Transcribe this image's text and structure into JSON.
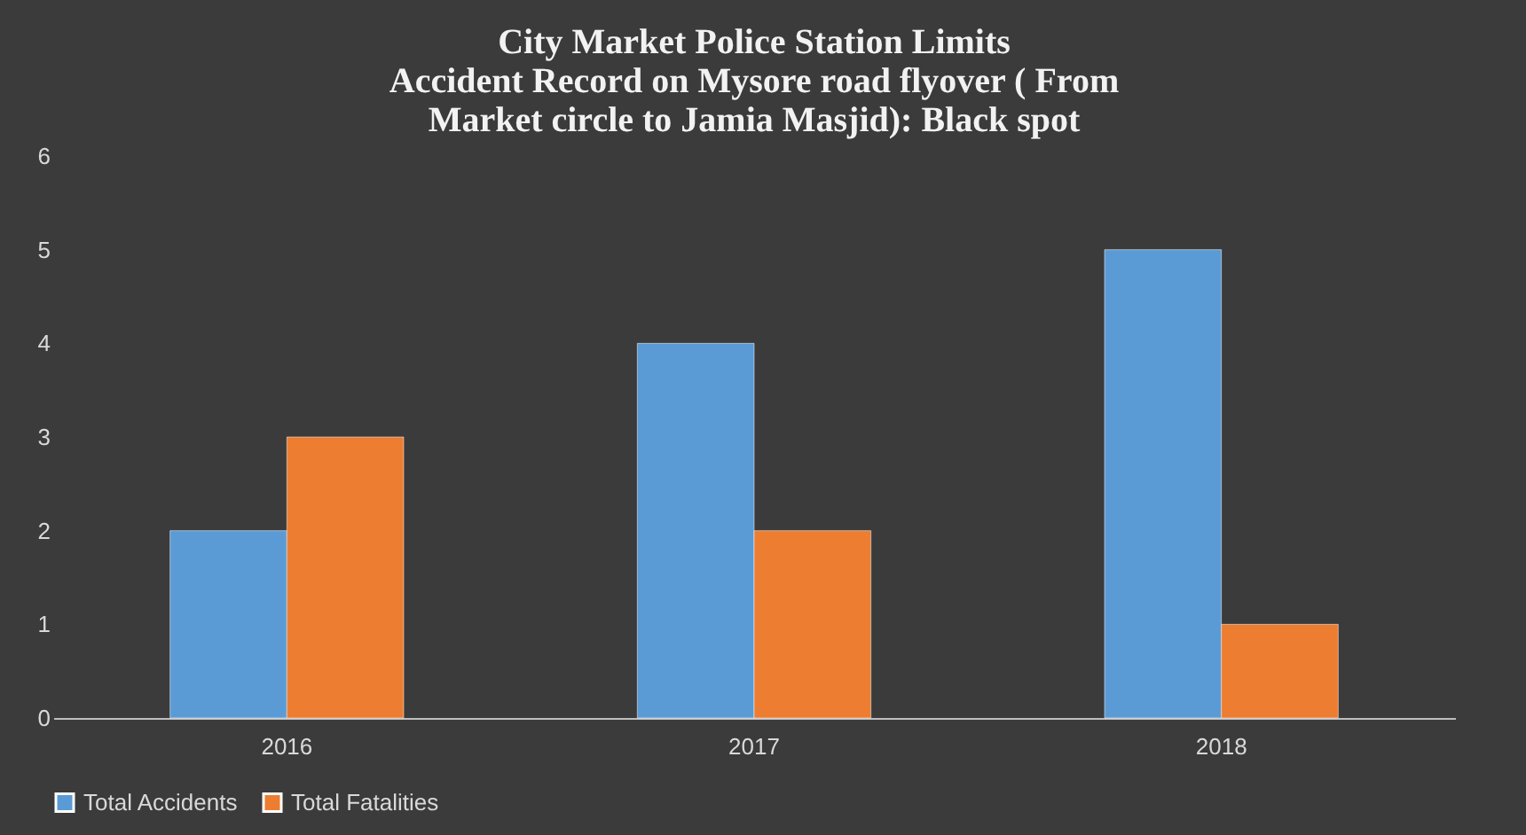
{
  "chart_data": {
    "type": "bar",
    "title": "City Market Police Station Limits\nAccident Record on Mysore road flyover ( From\nMarket circle to Jamia Masjid):  Black spot",
    "categories": [
      "2016",
      "2017",
      "2018"
    ],
    "series": [
      {
        "name": "Total Accidents",
        "color": "#5b9bd5",
        "values": [
          2,
          4,
          5
        ]
      },
      {
        "name": "Total Fatalities",
        "color": "#ed7d31",
        "values": [
          3,
          2,
          1
        ]
      }
    ],
    "ylim": [
      0,
      6
    ],
    "yticks": [
      0,
      1,
      2,
      3,
      4,
      5,
      6
    ],
    "grid": false,
    "legend": "bottom"
  }
}
